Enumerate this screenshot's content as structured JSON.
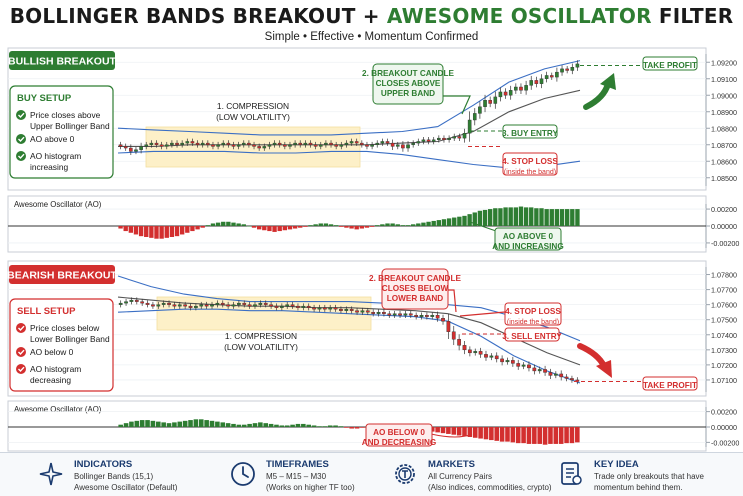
{
  "header": {
    "title_part1": "BOLLINGER BANDS BREAKOUT",
    "title_plus": "+",
    "title_part2": "AWESOME OSCILLATOR",
    "title_part3": "FILTER",
    "subtitle": "Simple  •  Effective  •  Momentum Confirmed"
  },
  "colors": {
    "bull": "#2e7d32",
    "bear": "#d32f2f",
    "band": "#3b6fc4",
    "compression": "#fdf0c8",
    "ma": "#555555",
    "navy": "#1b3b6f"
  },
  "bullish": {
    "badge": "BULLISH BREAKOUT",
    "setup_title": "BUY SETUP",
    "setup_items": [
      "Price closes above",
      "Upper Bollinger Band",
      "AO above 0",
      "AO histogram",
      "increasing"
    ],
    "compression": [
      "1. COMPRESSION",
      "(LOW VOLATILITY)"
    ],
    "breakout": [
      "2. BREAKOUT CANDLE",
      "CLOSES ABOVE",
      "UPPER BAND"
    ],
    "entry": "3. BUY ENTRY",
    "stop": [
      "4. STOP LOSS",
      "(inside the band)"
    ],
    "target": "TAKE PROFIT",
    "ao_label": "Awesome Oscillator (AO)",
    "ao_note": [
      "AO ABOVE 0",
      "AND INCREASING"
    ]
  },
  "bearish": {
    "badge": "BEARISH BREAKOUT",
    "setup_title": "SELL SETUP",
    "setup_items": [
      "Price closes below",
      "Lower Bollinger Band",
      "AO below 0",
      "AO histogram",
      "decreasing"
    ],
    "compression": [
      "1. COMPRESSION",
      "(LOW VOLATILITY)"
    ],
    "breakout": [
      "2. BREAKOUT CANDLE",
      "CLOSES BELOW",
      "LOWER BAND"
    ],
    "entry": "3. SELL ENTRY",
    "stop": [
      "4. STOP LOSS",
      "(inside the band)"
    ],
    "target": "TAKE PROFIT",
    "ao_label": "Awesome Oscillator (AO)",
    "ao_note": [
      "AO BELOW 0",
      "AND DECREASING"
    ]
  },
  "footer": {
    "indicators": {
      "title": "INDICATORS",
      "lines": [
        "Bollinger Bands (15,1)",
        "Awesome Oscillator (Default)"
      ]
    },
    "timeframes": {
      "title": "TIMEFRAMES",
      "lines": [
        "M5 – M15 – M30",
        "(Works on higher TF too)"
      ]
    },
    "markets": {
      "title": "MARKETS",
      "lines": [
        "All Currency Pairs",
        "(Also indices, commodities, crypto)"
      ]
    },
    "key_idea": {
      "title": "KEY IDEA",
      "lines": [
        "Trade only breakouts that have",
        "momentum behind them."
      ]
    }
  },
  "chart_data": [
    {
      "type": "candlestick",
      "panel": "bullish-price",
      "yticks": [
        "1.09200",
        "1.09100",
        "1.09000",
        "1.08900",
        "1.08800",
        "1.08700",
        "1.08600",
        "1.08500"
      ],
      "ylim": [
        1.0845,
        1.0925
      ],
      "candles": [
        [
          1.087,
          1.0869
        ],
        [
          1.0869,
          1.0868
        ],
        [
          1.0868,
          1.0866
        ],
        [
          1.0866,
          1.0867
        ],
        [
          1.0867,
          1.0869
        ],
        [
          1.0869,
          1.087
        ],
        [
          1.087,
          1.0871
        ],
        [
          1.0871,
          1.087
        ],
        [
          1.087,
          1.0869
        ],
        [
          1.0869,
          1.087
        ],
        [
          1.087,
          1.0871
        ],
        [
          1.0871,
          1.087
        ],
        [
          1.087,
          1.0871
        ],
        [
          1.0871,
          1.0872
        ],
        [
          1.0872,
          1.0871
        ],
        [
          1.0871,
          1.087
        ],
        [
          1.087,
          1.0871
        ],
        [
          1.0871,
          1.087
        ],
        [
          1.087,
          1.0869
        ],
        [
          1.0869,
          1.087
        ],
        [
          1.087,
          1.0871
        ],
        [
          1.0871,
          1.087
        ],
        [
          1.087,
          1.0869
        ],
        [
          1.0869,
          1.087
        ],
        [
          1.087,
          1.0871
        ],
        [
          1.0871,
          1.087
        ],
        [
          1.087,
          1.0869
        ],
        [
          1.0869,
          1.0868
        ],
        [
          1.0868,
          1.0869
        ],
        [
          1.0869,
          1.087
        ],
        [
          1.087,
          1.0871
        ],
        [
          1.0871,
          1.087
        ],
        [
          1.087,
          1.0869
        ],
        [
          1.0869,
          1.087
        ],
        [
          1.087,
          1.0871
        ],
        [
          1.0871,
          1.087
        ],
        [
          1.087,
          1.0871
        ],
        [
          1.0871,
          1.087
        ],
        [
          1.087,
          1.0869
        ],
        [
          1.0869,
          1.087
        ],
        [
          1.087,
          1.0871
        ],
        [
          1.0871,
          1.087
        ],
        [
          1.087,
          1.0869
        ],
        [
          1.0869,
          1.087
        ],
        [
          1.087,
          1.0871
        ],
        [
          1.0871,
          1.0872
        ],
        [
          1.0872,
          1.0871
        ],
        [
          1.0871,
          1.087
        ],
        [
          1.087,
          1.0869
        ],
        [
          1.0869,
          1.087
        ],
        [
          1.087,
          1.0871
        ],
        [
          1.0871,
          1.0872
        ],
        [
          1.0872,
          1.0871
        ],
        [
          1.0871,
          1.0869
        ],
        [
          1.0869,
          1.087
        ],
        [
          1.087,
          1.0868
        ],
        [
          1.0868,
          1.087
        ],
        [
          1.087,
          1.0871
        ],
        [
          1.0871,
          1.0872
        ],
        [
          1.0872,
          1.0873
        ],
        [
          1.0873,
          1.0872
        ],
        [
          1.0872,
          1.0873
        ],
        [
          1.0873,
          1.0874
        ],
        [
          1.0874,
          1.0873
        ],
        [
          1.0873,
          1.0874
        ],
        [
          1.0874,
          1.0875
        ],
        [
          1.0875,
          1.0874
        ],
        [
          1.0874,
          1.0877
        ],
        [
          1.0877,
          1.0885
        ],
        [
          1.0885,
          1.0889
        ],
        [
          1.0889,
          1.0893
        ],
        [
          1.0893,
          1.0897
        ],
        [
          1.0897,
          1.0895
        ],
        [
          1.0895,
          1.0899
        ],
        [
          1.0899,
          1.0902
        ],
        [
          1.0902,
          1.09
        ],
        [
          1.09,
          1.0903
        ],
        [
          1.0903,
          1.0905
        ],
        [
          1.0905,
          1.0903
        ],
        [
          1.0903,
          1.0906
        ],
        [
          1.0906,
          1.0909
        ],
        [
          1.0909,
          1.0907
        ],
        [
          1.0907,
          1.091
        ],
        [
          1.091,
          1.0912
        ],
        [
          1.0912,
          1.0911
        ],
        [
          1.0911,
          1.0914
        ],
        [
          1.0914,
          1.0916
        ],
        [
          1.0916,
          1.0915
        ],
        [
          1.0915,
          1.0917
        ],
        [
          1.0917,
          1.0919
        ]
      ],
      "upper_band": [
        1.088,
        1.0879,
        1.0878,
        1.0877,
        1.0876,
        1.0876,
        1.0876,
        1.0877,
        1.0878,
        1.0881,
        1.0894,
        1.0908,
        1.0916,
        1.0921
      ],
      "lower_band": [
        1.0865,
        1.0866,
        1.0866,
        1.0866,
        1.0865,
        1.0865,
        1.0866,
        1.0866,
        1.0864,
        1.0861,
        1.0858,
        1.0856,
        1.0857,
        1.086
      ],
      "middle_band": [
        1.0869,
        1.0869,
        1.087,
        1.087,
        1.087,
        1.087,
        1.087,
        1.087,
        1.0871,
        1.0872,
        1.0878,
        1.089,
        1.0898,
        1.0903
      ],
      "take_profit": 1.0918,
      "buy_entry": 1.0881,
      "stop_loss": 1.0872
    },
    {
      "type": "bar",
      "panel": "bullish-ao",
      "yticks": [
        "0.00200",
        "0.00000",
        "-0.00200"
      ],
      "ylim": [
        -0.0026,
        0.0026
      ],
      "values": [
        -0.0003,
        -0.0006,
        -0.0008,
        -0.001,
        -0.0012,
        -0.0013,
        -0.0014,
        -0.0015,
        -0.0015,
        -0.0014,
        -0.0013,
        -0.0012,
        -0.001,
        -0.0008,
        -0.0006,
        -0.0004,
        -0.0002,
        0.0001,
        0.0003,
        0.0004,
        0.0005,
        0.0005,
        0.0004,
        0.0003,
        0.0002,
        0.0,
        -0.0002,
        -0.0004,
        -0.0005,
        -0.0006,
        -0.0007,
        -0.0006,
        -0.0005,
        -0.0004,
        -0.0003,
        -0.0002,
        -0.0001,
        0.0001,
        0.0002,
        0.0003,
        0.0003,
        0.0002,
        0.0001,
        -0.0001,
        -0.0002,
        -0.0003,
        -0.0004,
        -0.0003,
        -0.0002,
        -0.0001,
        0.0001,
        0.0002,
        0.0003,
        0.0003,
        0.0002,
        0.0001,
        0.0001,
        0.0002,
        0.0003,
        0.0004,
        0.0005,
        0.0006,
        0.0007,
        0.0008,
        0.0009,
        0.001,
        0.0011,
        0.0012,
        0.0014,
        0.0016,
        0.0018,
        0.0019,
        0.002,
        0.0021,
        0.0021,
        0.0022,
        0.0022,
        0.0022,
        0.0023,
        0.0022,
        0.0022,
        0.0021,
        0.0021,
        0.002,
        0.002,
        0.002,
        0.002,
        0.002,
        0.002,
        0.002
      ]
    },
    {
      "type": "candlestick",
      "panel": "bearish-price",
      "yticks": [
        "1.07800",
        "1.07700",
        "1.07600",
        "1.07500",
        "1.07400",
        "1.07300",
        "1.07200",
        "1.07100"
      ],
      "ylim": [
        1.0702,
        1.0785
      ],
      "candles": [
        [
          1.076,
          1.0761
        ],
        [
          1.0761,
          1.0762
        ],
        [
          1.0762,
          1.0763
        ],
        [
          1.0763,
          1.0762
        ],
        [
          1.0762,
          1.0761
        ],
        [
          1.0761,
          1.076
        ],
        [
          1.076,
          1.0759
        ],
        [
          1.0759,
          1.076
        ],
        [
          1.076,
          1.0761
        ],
        [
          1.0761,
          1.076
        ],
        [
          1.076,
          1.0759
        ],
        [
          1.0759,
          1.076
        ],
        [
          1.076,
          1.0759
        ],
        [
          1.0759,
          1.0758
        ],
        [
          1.0758,
          1.0759
        ],
        [
          1.0759,
          1.076
        ],
        [
          1.076,
          1.0759
        ],
        [
          1.0759,
          1.076
        ],
        [
          1.076,
          1.0761
        ],
        [
          1.0761,
          1.076
        ],
        [
          1.076,
          1.0759
        ],
        [
          1.0759,
          1.076
        ],
        [
          1.076,
          1.0761
        ],
        [
          1.0761,
          1.076
        ],
        [
          1.076,
          1.0759
        ],
        [
          1.0759,
          1.076
        ],
        [
          1.076,
          1.0761
        ],
        [
          1.0761,
          1.076
        ],
        [
          1.076,
          1.0759
        ],
        [
          1.0759,
          1.0758
        ],
        [
          1.0758,
          1.0759
        ],
        [
          1.0759,
          1.076
        ],
        [
          1.076,
          1.0759
        ],
        [
          1.0759,
          1.0758
        ],
        [
          1.0758,
          1.0759
        ],
        [
          1.0759,
          1.0758
        ],
        [
          1.0758,
          1.0757
        ],
        [
          1.0757,
          1.0758
        ],
        [
          1.0758,
          1.0757
        ],
        [
          1.0757,
          1.0758
        ],
        [
          1.0758,
          1.0757
        ],
        [
          1.0757,
          1.0756
        ],
        [
          1.0756,
          1.0757
        ],
        [
          1.0757,
          1.0756
        ],
        [
          1.0756,
          1.0755
        ],
        [
          1.0755,
          1.0756
        ],
        [
          1.0756,
          1.0755
        ],
        [
          1.0755,
          1.0754
        ],
        [
          1.0754,
          1.0755
        ],
        [
          1.0755,
          1.0754
        ],
        [
          1.0754,
          1.0753
        ],
        [
          1.0753,
          1.0754
        ],
        [
          1.0754,
          1.0753
        ],
        [
          1.0753,
          1.0754
        ],
        [
          1.0754,
          1.0753
        ],
        [
          1.0753,
          1.0752
        ],
        [
          1.0752,
          1.0753
        ],
        [
          1.0753,
          1.0752
        ],
        [
          1.0752,
          1.0753
        ],
        [
          1.0753,
          1.0751
        ],
        [
          1.0751,
          1.0749
        ],
        [
          1.0749,
          1.0742
        ],
        [
          1.0742,
          1.0737
        ],
        [
          1.0737,
          1.0733
        ],
        [
          1.0733,
          1.073
        ],
        [
          1.073,
          1.0728
        ],
        [
          1.0728,
          1.0729
        ],
        [
          1.0729,
          1.0727
        ],
        [
          1.0727,
          1.0725
        ],
        [
          1.0725,
          1.0726
        ],
        [
          1.0726,
          1.0724
        ],
        [
          1.0724,
          1.0722
        ],
        [
          1.0722,
          1.0723
        ],
        [
          1.0723,
          1.0721
        ],
        [
          1.0721,
          1.0719
        ],
        [
          1.0719,
          1.072
        ],
        [
          1.072,
          1.0718
        ],
        [
          1.0718,
          1.0716
        ],
        [
          1.0716,
          1.0717
        ],
        [
          1.0717,
          1.0715
        ],
        [
          1.0715,
          1.0713
        ],
        [
          1.0713,
          1.0714
        ],
        [
          1.0714,
          1.0712
        ],
        [
          1.0712,
          1.0711
        ],
        [
          1.0711,
          1.071
        ],
        [
          1.071,
          1.0709
        ]
      ],
      "upper_band": [
        1.0779,
        1.0772,
        1.0767,
        1.0764,
        1.0762,
        1.0762,
        1.0762,
        1.0762,
        1.0761,
        1.0761,
        1.076,
        1.0758,
        1.0752,
        1.0745,
        1.0736
      ],
      "lower_band": [
        1.0755,
        1.0756,
        1.0757,
        1.0757,
        1.0756,
        1.0756,
        1.0755,
        1.0754,
        1.0753,
        1.0752,
        1.0749,
        1.0739,
        1.0726,
        1.0716,
        1.0708
      ],
      "middle_band": [
        1.0765,
        1.0763,
        1.0761,
        1.076,
        1.0759,
        1.0759,
        1.0758,
        1.0758,
        1.0757,
        1.0756,
        1.0754,
        1.0748,
        1.0738,
        1.0728,
        1.072
      ],
      "take_profit": 1.0709,
      "sell_entry": 1.0744,
      "stop_loss": 1.0754
    },
    {
      "type": "bar",
      "panel": "bearish-ao",
      "yticks": [
        "0.00200",
        "0.00000",
        "-0.00200"
      ],
      "ylim": [
        -0.0026,
        0.0026
      ],
      "values": [
        0.0003,
        0.0005,
        0.0007,
        0.0008,
        0.0009,
        0.0009,
        0.0008,
        0.0007,
        0.0006,
        0.0005,
        0.0006,
        0.0007,
        0.0008,
        0.0009,
        0.001,
        0.001,
        0.0009,
        0.0008,
        0.0007,
        0.0006,
        0.0005,
        0.0004,
        0.0003,
        0.0003,
        0.0004,
        0.0005,
        0.0006,
        0.0005,
        0.0004,
        0.0003,
        0.0002,
        0.0002,
        0.0003,
        0.0004,
        0.0004,
        0.0003,
        0.0002,
        0.0001,
        0.0001,
        0.0002,
        0.0002,
        0.0001,
        -0.0001,
        -0.0002,
        -0.0002,
        -0.0001,
        0.0001,
        0.0001,
        -0.0001,
        -0.0002,
        -0.0003,
        -0.0003,
        -0.0002,
        -0.0001,
        -0.0002,
        -0.0003,
        -0.0004,
        -0.0005,
        -0.0006,
        -0.0007,
        -0.0008,
        -0.0009,
        -0.001,
        -0.0011,
        -0.0012,
        -0.0013,
        -0.0014,
        -0.0015,
        -0.0016,
        -0.0017,
        -0.0018,
        -0.0019,
        -0.0019,
        -0.002,
        -0.0021,
        -0.0021,
        -0.0022,
        -0.0022,
        -0.0022,
        -0.0023,
        -0.0022,
        -0.0022,
        -0.0022,
        -0.0021,
        -0.0021,
        -0.002
      ]
    }
  ]
}
